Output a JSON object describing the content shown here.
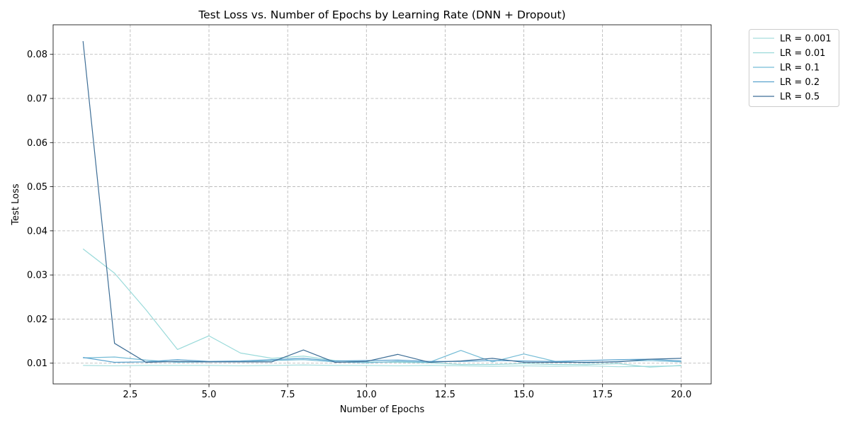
{
  "chart_data": {
    "type": "line",
    "title": "Test Loss vs. Number of Epochs by Learning Rate (DNN + Dropout)",
    "xlabel": "Number of Epochs",
    "ylabel": "Test Loss",
    "xlim": [
      0.05,
      20.95
    ],
    "ylim": [
      0.0053,
      0.0867
    ],
    "x_ticks": [
      2.5,
      5.0,
      7.5,
      10.0,
      12.5,
      15.0,
      17.5,
      20.0
    ],
    "x_tick_labels": [
      "2.5",
      "5.0",
      "7.5",
      "10.0",
      "12.5",
      "15.0",
      "17.5",
      "20.0"
    ],
    "y_ticks": [
      0.01,
      0.02,
      0.03,
      0.04,
      0.05,
      0.06,
      0.07,
      0.08
    ],
    "y_tick_labels": [
      "0.01",
      "0.02",
      "0.03",
      "0.04",
      "0.05",
      "0.06",
      "0.07",
      "0.08"
    ],
    "grid": true,
    "legend_position": "outside-top-right",
    "x": [
      1,
      2,
      3,
      4,
      5,
      6,
      7,
      8,
      9,
      10,
      11,
      12,
      13,
      14,
      15,
      16,
      17,
      18,
      19,
      20
    ],
    "series": [
      {
        "name": "LR = 0.001",
        "color": "#a8dede",
        "values": [
          0.0095,
          0.0094,
          0.0095,
          0.0095,
          0.0095,
          0.0094,
          0.0095,
          0.0096,
          0.0095,
          0.0095,
          0.0094,
          0.0095,
          0.0094,
          0.0093,
          0.0094,
          0.0093,
          0.0094,
          0.0092,
          0.0093,
          0.0094
        ]
      },
      {
        "name": "LR = 0.01",
        "color": "#9adada",
        "values": [
          0.0359,
          0.0304,
          0.0221,
          0.0131,
          0.0162,
          0.0123,
          0.0111,
          0.0116,
          0.0106,
          0.0103,
          0.0102,
          0.0101,
          0.0097,
          0.0097,
          0.0099,
          0.0097,
          0.0097,
          0.0099,
          0.0091,
          0.0095
        ]
      },
      {
        "name": "LR = 0.1",
        "color": "#75bcd6",
        "values": [
          0.0112,
          0.0114,
          0.0107,
          0.0102,
          0.0103,
          0.0103,
          0.0106,
          0.0108,
          0.0103,
          0.0101,
          0.0104,
          0.0102,
          0.0129,
          0.0103,
          0.0121,
          0.0104,
          0.0101,
          0.0104,
          0.0106,
          0.0103
        ]
      },
      {
        "name": "LR = 0.2",
        "color": "#5aa3ce",
        "values": [
          0.0113,
          0.0102,
          0.0103,
          0.0108,
          0.0104,
          0.0105,
          0.0108,
          0.0111,
          0.0105,
          0.0106,
          0.0107,
          0.0104,
          0.0104,
          0.0106,
          0.0105,
          0.0104,
          0.0106,
          0.0108,
          0.0109,
          0.0105
        ]
      },
      {
        "name": "LR = 0.5",
        "color": "#3e6e96",
        "values": [
          0.083,
          0.0145,
          0.0102,
          0.0104,
          0.0103,
          0.0103,
          0.0103,
          0.013,
          0.0102,
          0.0104,
          0.012,
          0.0102,
          0.0105,
          0.0111,
          0.0102,
          0.0102,
          0.0102,
          0.0103,
          0.0109,
          0.0111
        ]
      }
    ]
  }
}
